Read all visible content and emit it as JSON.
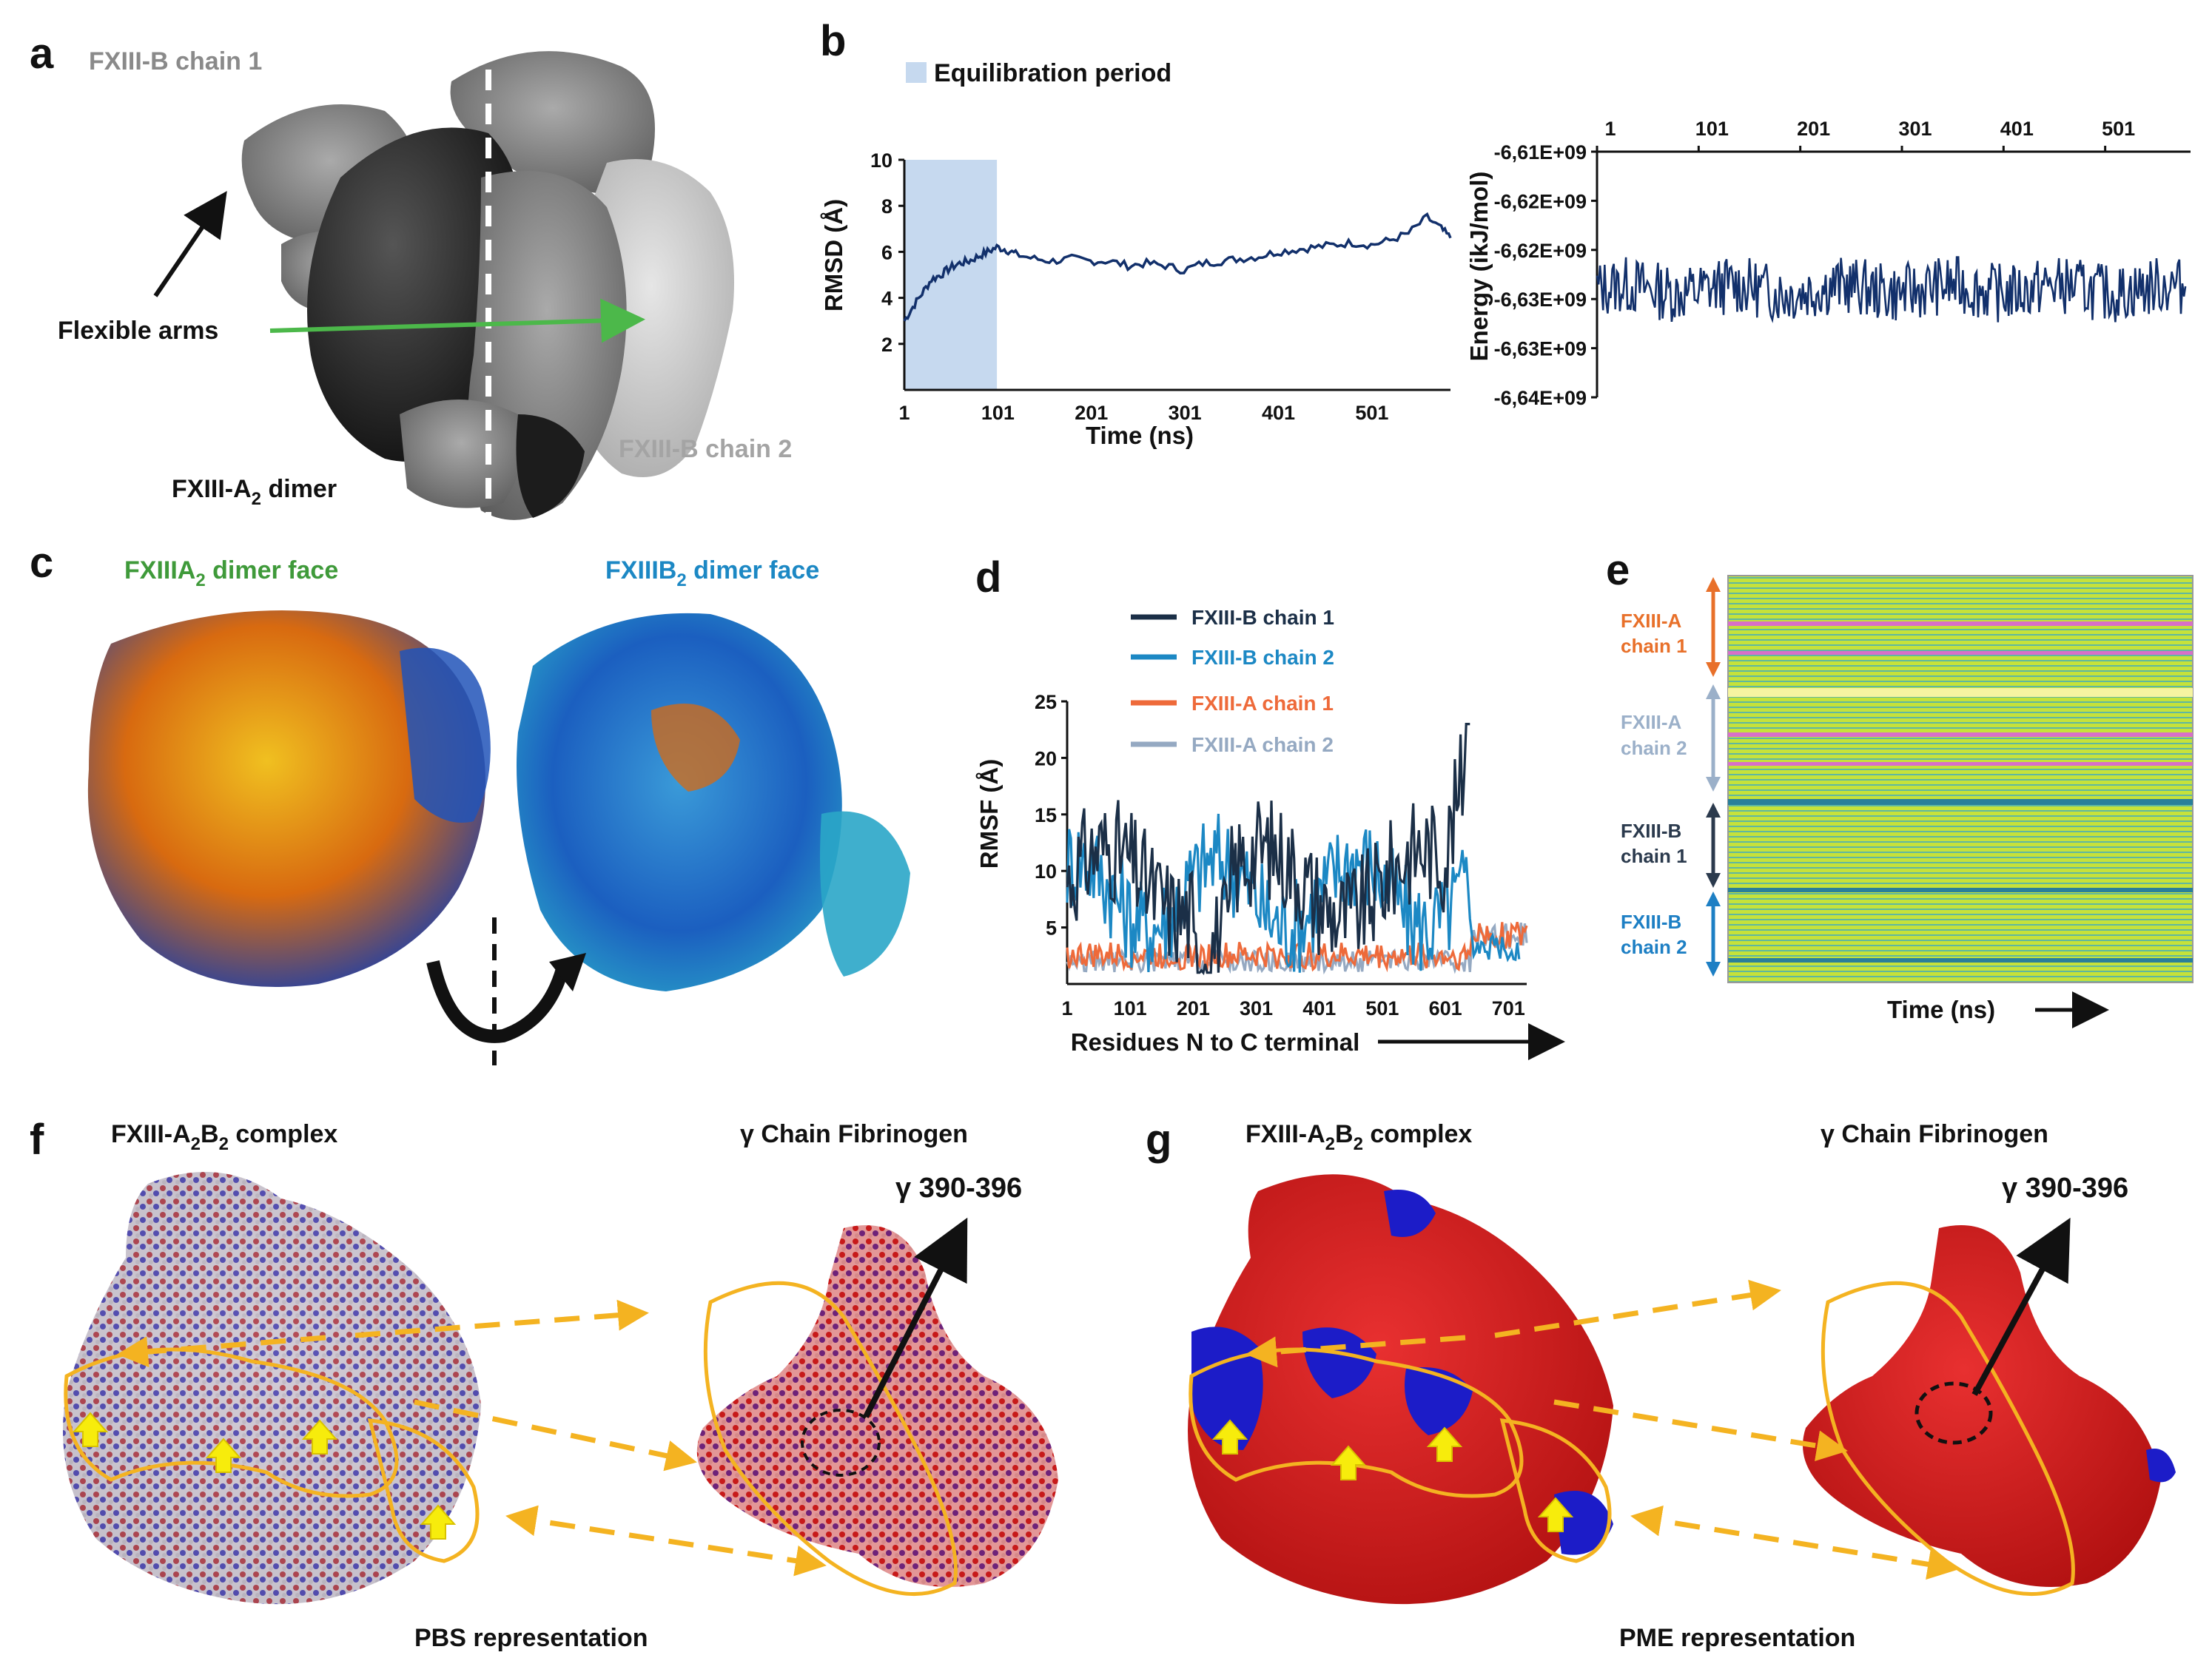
{
  "panel_letters": {
    "a": "a",
    "b": "b",
    "c": "c",
    "d": "d",
    "e": "e",
    "f": "f",
    "g": "g"
  },
  "panel_a": {
    "chain1": "FXIII-B  chain 1",
    "chain2": "FXIII-B  chain 2",
    "flex": "Flexible arms",
    "dimer_main": "FXIII-A",
    "dimer_sub": "2",
    "dimer_tail": " dimer"
  },
  "panel_c": {
    "left_main": "FXIIIA",
    "left_sub": "2",
    "left_tail": " dimer face",
    "right_main": "FXIIIB",
    "right_sub": "2",
    "right_tail": " dimer  face"
  },
  "panel_e": {
    "labels": [
      {
        "l1": "FXIII-A",
        "l2": "chain 1",
        "color": "#e8702a"
      },
      {
        "l1": "FXIII-A",
        "l2": "chain 2",
        "color": "#9bb0c9"
      },
      {
        "l1": "FXIII-B",
        "l2": "chain 1",
        "color": "#2b3a4d"
      },
      {
        "l1": "FXIII-B",
        "l2": "chain 2",
        "color": "#1d7fc4"
      }
    ],
    "xlabel": "Time (ns)"
  },
  "panel_fg": {
    "f_title_a": "FXIII-A",
    "f_sub_a": "2",
    "f_title_b": "B",
    "f_sub_b": "2",
    "f_tail": " complex",
    "fib_title": "γ Chain Fibrinogen",
    "gamma": "γ 390-396",
    "f_rep": "PBS representation",
    "g_rep": "PME representation"
  },
  "chart_data": [
    {
      "type": "line",
      "id": "rmsd",
      "ylabel": "RMSD (Å)",
      "xlabel": "Time (ns)",
      "ylim": [
        0,
        10
      ],
      "yticks": [
        2,
        4,
        6,
        8,
        10
      ],
      "xticks": [
        1,
        101,
        201,
        301,
        401,
        501
      ],
      "xlim": [
        1,
        585
      ],
      "legend": "Equilibration period",
      "shade": [
        1,
        100
      ],
      "x": [
        1,
        10,
        20,
        30,
        40,
        50,
        60,
        70,
        80,
        90,
        100,
        110,
        120,
        140,
        160,
        180,
        200,
        220,
        240,
        260,
        280,
        300,
        320,
        340,
        360,
        380,
        400,
        420,
        440,
        460,
        480,
        500,
        520,
        540,
        560,
        575,
        585
      ],
      "y": [
        3.0,
        3.6,
        4.2,
        4.8,
        5.0,
        5.3,
        5.5,
        5.6,
        5.8,
        6.0,
        6.2,
        6.1,
        5.9,
        5.7,
        5.6,
        5.7,
        5.6,
        5.6,
        5.4,
        5.5,
        5.4,
        5.2,
        5.5,
        5.6,
        5.7,
        5.8,
        6.0,
        6.1,
        6.2,
        6.3,
        6.4,
        6.3,
        6.5,
        6.8,
        7.5,
        7.0,
        6.6
      ]
    },
    {
      "type": "line",
      "id": "energy",
      "ylabel": "Energy (ikJ/mol)",
      "xticks": [
        1,
        101,
        201,
        301,
        401,
        501
      ],
      "xlim": [
        1,
        585
      ],
      "yticks": [
        "-6,61E+09",
        "-6,62E+09",
        "-6,62E+09",
        "-6,63E+09",
        "-6,63E+09",
        "-6,64E+09"
      ],
      "mean": -6.6265,
      "spread": 0.003
    },
    {
      "type": "line",
      "id": "rmsf",
      "ylabel": "RMSF (Å)",
      "xlabel": "Residues N to C terminal",
      "ylim": [
        0,
        25
      ],
      "yticks": [
        5,
        10,
        15,
        20,
        25
      ],
      "xticks": [
        1,
        101,
        201,
        301,
        401,
        501,
        601,
        701
      ],
      "xlim": [
        1,
        730
      ],
      "series": [
        {
          "name": "FXIII-B  chain 1",
          "color": "#1b2f47",
          "end": 640,
          "base": 9,
          "amp": 6
        },
        {
          "name": "FXIII-B  chain 2",
          "color": "#1c88c4",
          "end": 720,
          "base": 8,
          "amp": 6
        },
        {
          "name": "FXIII-A  chain 1",
          "color": "#ee6a3a",
          "end": 730,
          "base": 2.5,
          "amp": 1.5
        },
        {
          "name": "FXIII-A  chain 2",
          "color": "#95a9c2",
          "end": 730,
          "base": 2,
          "amp": 1.2
        }
      ]
    }
  ],
  "colors": {
    "navy": "#12306b",
    "shade": "#c6d9ef",
    "green": "#4cb84a",
    "orange": "#f4b321",
    "yellow": "#f7ec0c"
  }
}
